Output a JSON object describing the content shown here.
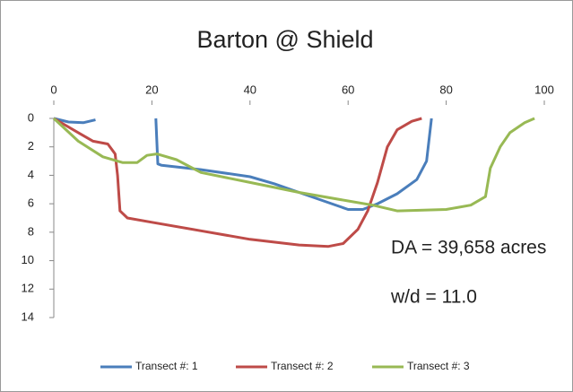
{
  "chart_data": {
    "type": "line",
    "title": "Barton @ Shield",
    "xlim": [
      0,
      100
    ],
    "xticks": [
      0,
      20,
      40,
      60,
      80,
      100
    ],
    "ylim": [
      0,
      14
    ],
    "yticks": [
      0,
      2,
      4,
      6,
      8,
      10,
      12,
      14
    ],
    "y_inverted": true,
    "x_axis_position": "top",
    "legend": "bottom",
    "grid": false,
    "annotations": [
      "DA = 39,658 acres",
      "w/d = 11.0"
    ],
    "series": [
      {
        "name": "Transect #: 1",
        "color": "#4a7ebb",
        "x": [
          0,
          3,
          6,
          8.5,
          15,
          20.8,
          21.2,
          22,
          30,
          40,
          45,
          50,
          55,
          60,
          63,
          66,
          70,
          74,
          76,
          77
        ],
        "values": [
          0,
          0.25,
          0.3,
          0.1,
          null,
          0,
          3.2,
          3.3,
          3.6,
          4.1,
          4.6,
          5.2,
          5.8,
          6.4,
          6.4,
          6.0,
          5.3,
          4.3,
          3.0,
          0
        ]
      },
      {
        "name": "Transect #: 2",
        "color": "#be4b48",
        "x": [
          0,
          5,
          8,
          11,
          12.5,
          13,
          13.5,
          15,
          20,
          30,
          40,
          50,
          56,
          59,
          62,
          64,
          66,
          68,
          70,
          73,
          75
        ],
        "values": [
          0,
          1,
          1.6,
          1.8,
          2.5,
          4,
          6.5,
          7,
          7.3,
          7.9,
          8.5,
          8.9,
          9,
          8.8,
          7.8,
          6.5,
          4.5,
          2,
          0.8,
          0.2,
          0
        ]
      },
      {
        "name": "Transect #: 3",
        "color": "#98b954",
        "x": [
          0,
          5,
          10,
          14,
          17,
          19,
          21,
          25,
          30,
          40,
          50,
          60,
          65,
          70,
          80,
          85,
          88,
          89,
          91,
          93,
          96,
          98
        ],
        "values": [
          0,
          1.6,
          2.7,
          3.1,
          3.1,
          2.6,
          2.5,
          2.9,
          3.8,
          4.5,
          5.2,
          5.8,
          6.1,
          6.5,
          6.4,
          6.1,
          5.5,
          3.5,
          2,
          1,
          0.3,
          0
        ]
      }
    ]
  }
}
